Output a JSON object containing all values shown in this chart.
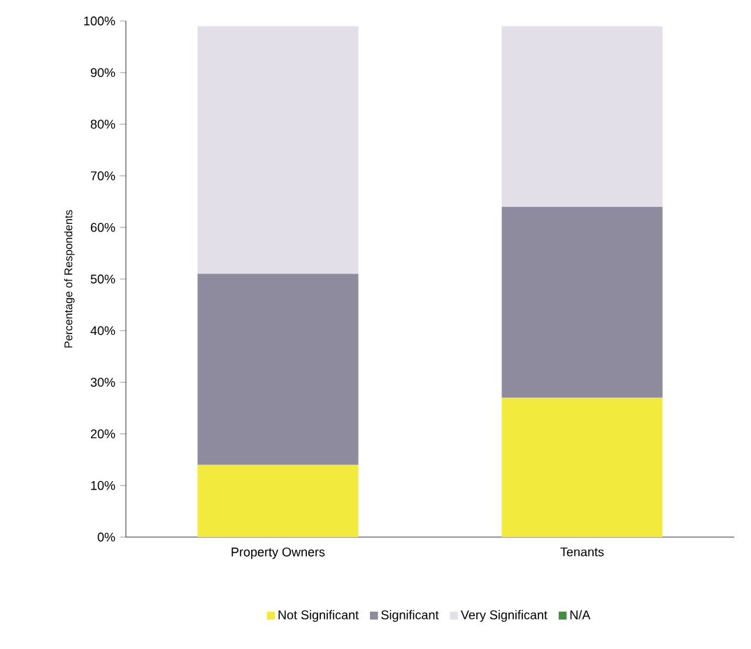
{
  "chart_data": {
    "type": "bar",
    "stacked": true,
    "ylabel": "Percentage of Respondents",
    "categories": [
      "Property Owners",
      "Tenants"
    ],
    "series": [
      {
        "name": "Not Significant",
        "color": "#f2ea3c",
        "values": [
          14,
          27
        ]
      },
      {
        "name": "Significant",
        "color": "#8e8b9f",
        "values": [
          37,
          37
        ]
      },
      {
        "name": "Very Significant",
        "color": "#e2dfe8",
        "values": [
          48,
          35
        ]
      },
      {
        "name": "N/A",
        "color": "#3f8f3f",
        "values": [
          null,
          null
        ]
      }
    ],
    "ylim": [
      0,
      100
    ],
    "yticks": [
      {
        "value": 0,
        "label": "0%"
      },
      {
        "value": 10,
        "label": "10%"
      },
      {
        "value": 20,
        "label": "20%"
      },
      {
        "value": 30,
        "label": "30%"
      },
      {
        "value": 40,
        "label": "40%"
      },
      {
        "value": 50,
        "label": "50%"
      },
      {
        "value": 60,
        "label": "60%"
      },
      {
        "value": 70,
        "label": "70%"
      },
      {
        "value": 80,
        "label": "80%"
      },
      {
        "value": 90,
        "label": "90%"
      },
      {
        "value": 100,
        "label": "100%"
      }
    ],
    "legend": "bottom",
    "grid": false
  }
}
